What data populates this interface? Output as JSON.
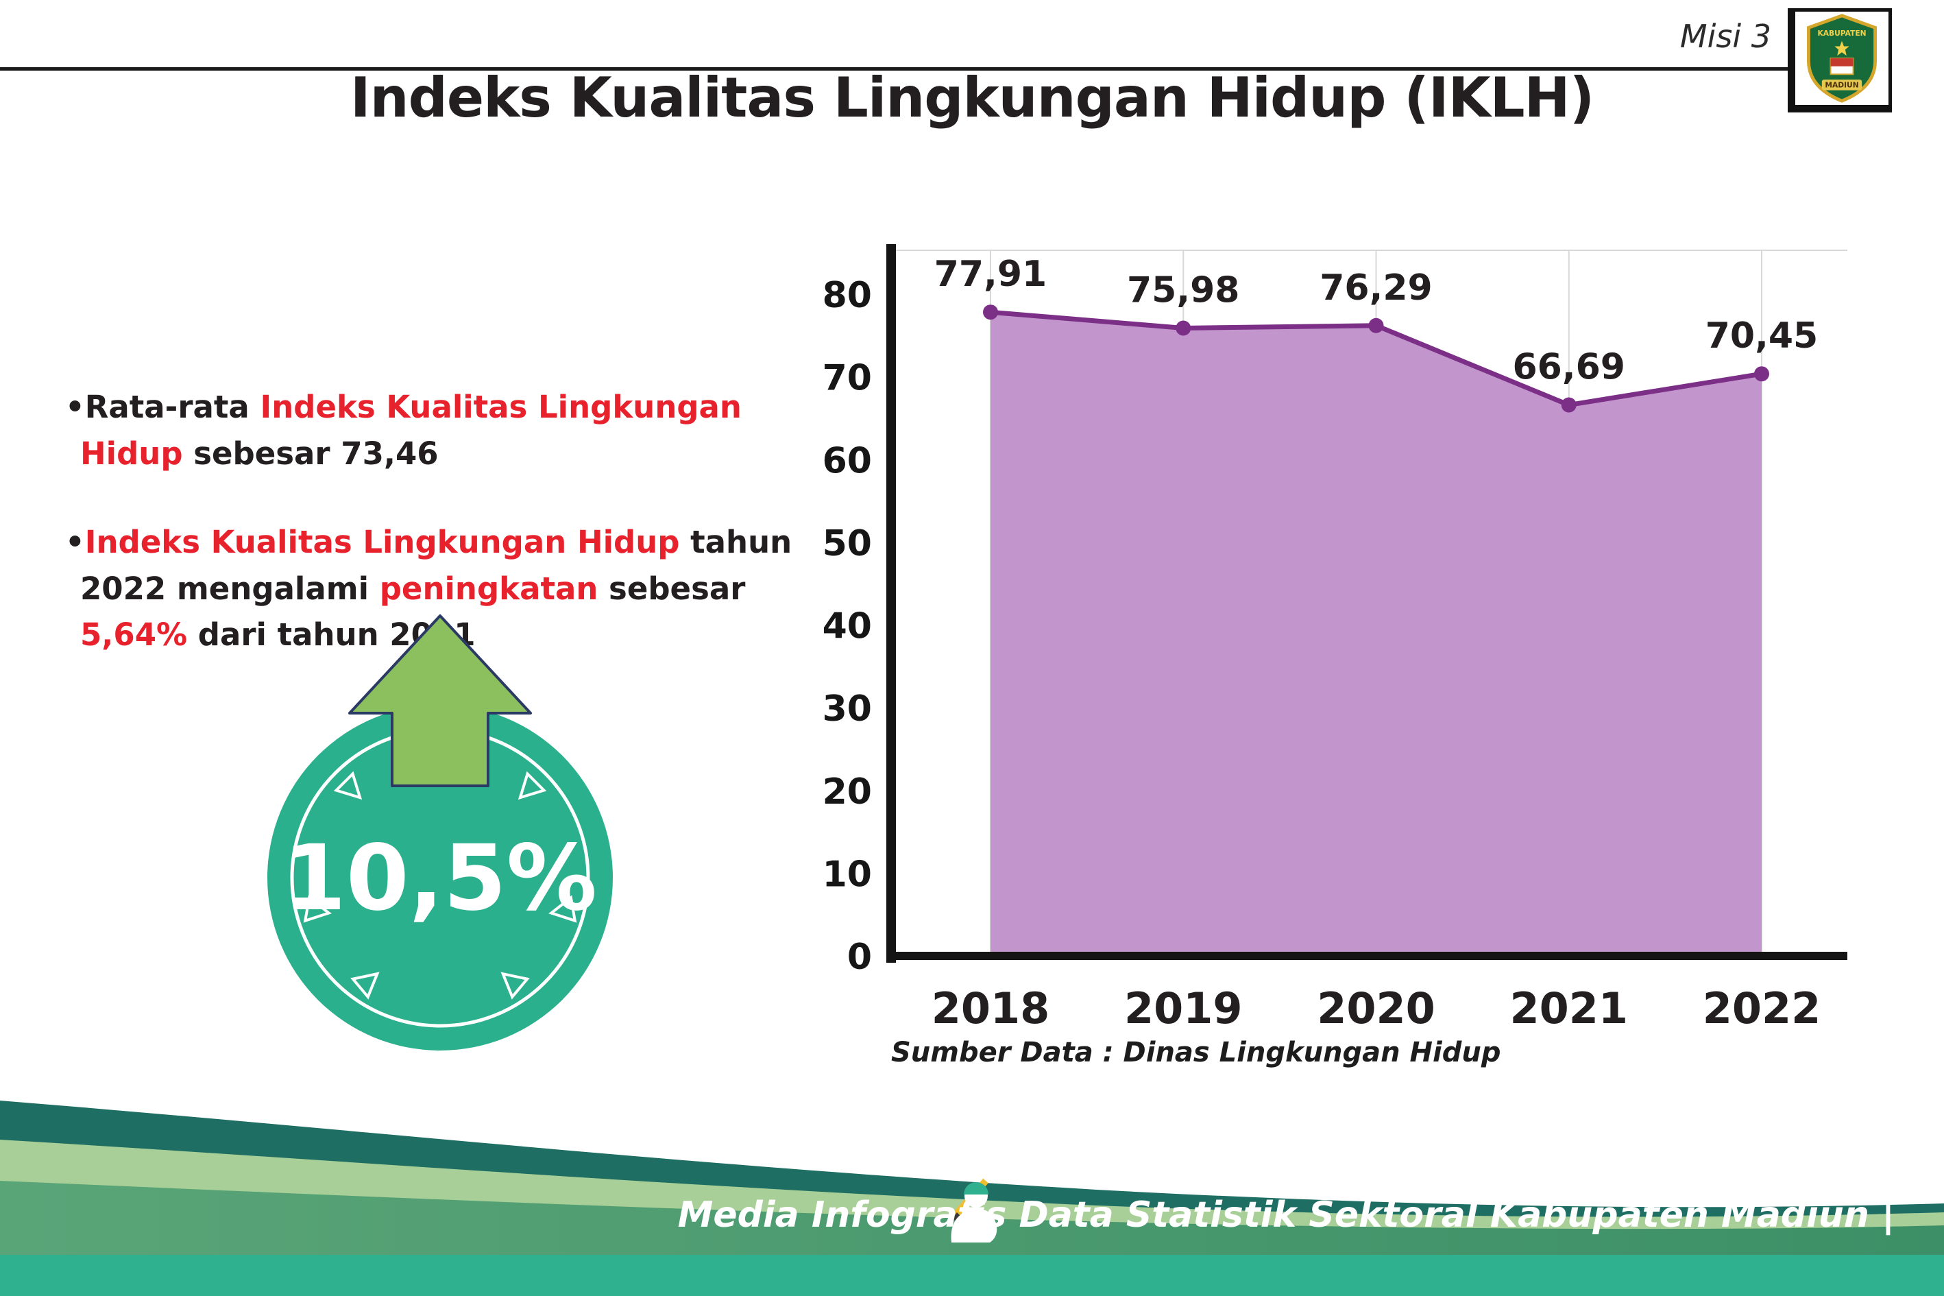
{
  "header": {
    "misi_label": "Misi 3",
    "logo": {
      "line1": "KABUPATEN",
      "line2": "MADIUN"
    }
  },
  "title": "Indeks Kualitas Lingkungan Hidup (IKLH)",
  "bullets": [
    {
      "marker": "•",
      "segments": [
        {
          "text": "Rata-rata ",
          "highlight": false
        },
        {
          "text": "Indeks Kualitas Lingkungan Hidup",
          "highlight": true
        },
        {
          "text": " sebesar 73,46",
          "highlight": false
        }
      ]
    },
    {
      "marker": "•",
      "segments": [
        {
          "text": "Indeks Kualitas Lingkungan Hidup",
          "highlight": true
        },
        {
          "text": " tahun 2022 mengalami ",
          "highlight": false
        },
        {
          "text": "peningkatan",
          "highlight": true
        },
        {
          "text": " sebesar ",
          "highlight": false
        },
        {
          "text": "5,64%",
          "highlight": true
        },
        {
          "text": " dari tahun 2021",
          "highlight": false
        }
      ]
    }
  ],
  "badge": {
    "value": "10,5%",
    "direction": "up"
  },
  "chart_data": {
    "type": "area",
    "title": "",
    "xlabel": "",
    "ylabel": "",
    "categories": [
      "2018",
      "2019",
      "2020",
      "2021",
      "2022"
    ],
    "values": [
      77.91,
      75.98,
      76.29,
      66.69,
      70.45
    ],
    "value_labels": [
      "77,91",
      "75,98",
      "76,29",
      "66,69",
      "70,45"
    ],
    "ylim": [
      0,
      80
    ],
    "ytick_step": 10,
    "grid": "vertical",
    "legend": "none",
    "colors": {
      "fill": "#c295cc",
      "line": "#7c2f87",
      "axis": "#141414",
      "grid": "#d8d8d8"
    },
    "source": "Sumber Data : Dinas Lingkungan Hidup"
  },
  "footer": {
    "credit": "Media Infografis Data Statistik Sektoral Kabupaten Madiun |"
  },
  "palette": {
    "red_highlight": "#e8222d",
    "badge_teal": "#2bb08d",
    "arrow_green": "#8cc05e",
    "footer_dark_teal": "#1e6e63",
    "footer_sage": "#a8cf97",
    "footer_green": "#4f9e73",
    "footer_strip": "#2fb08f"
  }
}
